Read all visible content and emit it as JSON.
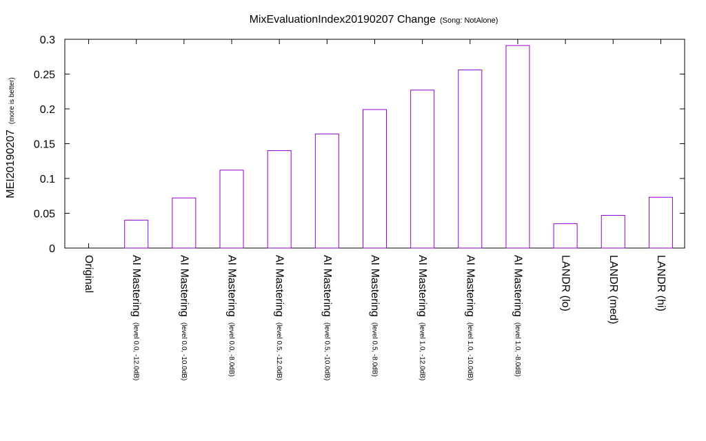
{
  "chart_data": {
    "type": "bar",
    "title": "MixEvaluationIndex20190207 Change",
    "subtitle": "(Song: NotAlone)",
    "ylabel": "MEI20190207",
    "ylabel_note": "(more is better)",
    "ylim": [
      0,
      0.3
    ],
    "yticks": [
      "0",
      "0.05",
      "0.1",
      "0.15",
      "0.2",
      "0.25",
      "0.3"
    ],
    "yticks_values": [
      0,
      0.05,
      0.1,
      0.15,
      0.2,
      0.25,
      0.3
    ],
    "bar_color": "#9400d3",
    "grid": false,
    "categories": [
      {
        "main": "Original",
        "sub": ""
      },
      {
        "main": "AI Mastering",
        "sub": "(level 0.0, -12.0dB)"
      },
      {
        "main": "AI Mastering",
        "sub": "(level 0.0, -10.0dB)"
      },
      {
        "main": "AI Mastering",
        "sub": "(level 0.0, -8.0dB)"
      },
      {
        "main": "AI Mastering",
        "sub": "(level 0.5, -12.0dB)"
      },
      {
        "main": "AI Mastering",
        "sub": "(level 0.5, -10.0dB)"
      },
      {
        "main": "AI Mastering",
        "sub": "(level 0.5, -8.0dB)"
      },
      {
        "main": "AI Mastering",
        "sub": "(level 1.0, -12.0dB)"
      },
      {
        "main": "AI Mastering",
        "sub": "(level 1.0, -10.0dB)"
      },
      {
        "main": "AI Mastering",
        "sub": "(level 1.0, -8.0dB)"
      },
      {
        "main": "LANDR (lo)",
        "sub": ""
      },
      {
        "main": "LANDR (med)",
        "sub": ""
      },
      {
        "main": "LANDR (hi)",
        "sub": ""
      }
    ],
    "values": [
      0.0,
      0.04,
      0.072,
      0.112,
      0.14,
      0.164,
      0.199,
      0.227,
      0.256,
      0.291,
      0.035,
      0.047,
      0.073
    ]
  }
}
